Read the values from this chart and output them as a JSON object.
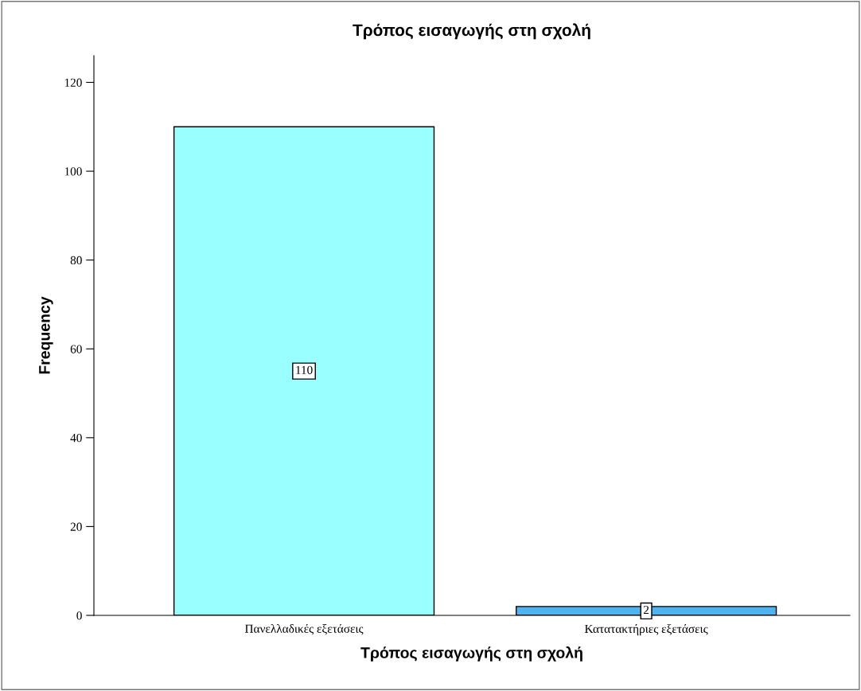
{
  "chart_data": {
    "type": "bar",
    "title": "Τρόπος εισαγωγής στη σχολή",
    "xlabel": "Τρόπος εισαγωγής στη σχολή",
    "ylabel": "Frequency",
    "categories": [
      "Πανελλαδικές εξετάσεις",
      "Κατατακτήριες εξετάσεις"
    ],
    "values": [
      110,
      2
    ],
    "colors": [
      "#99ffff",
      "#4fb3f0"
    ],
    "ylim": [
      0,
      126
    ],
    "yticks": [
      0,
      20,
      40,
      60,
      80,
      100,
      120
    ],
    "data_labels": true,
    "grid": false,
    "legend": false
  }
}
